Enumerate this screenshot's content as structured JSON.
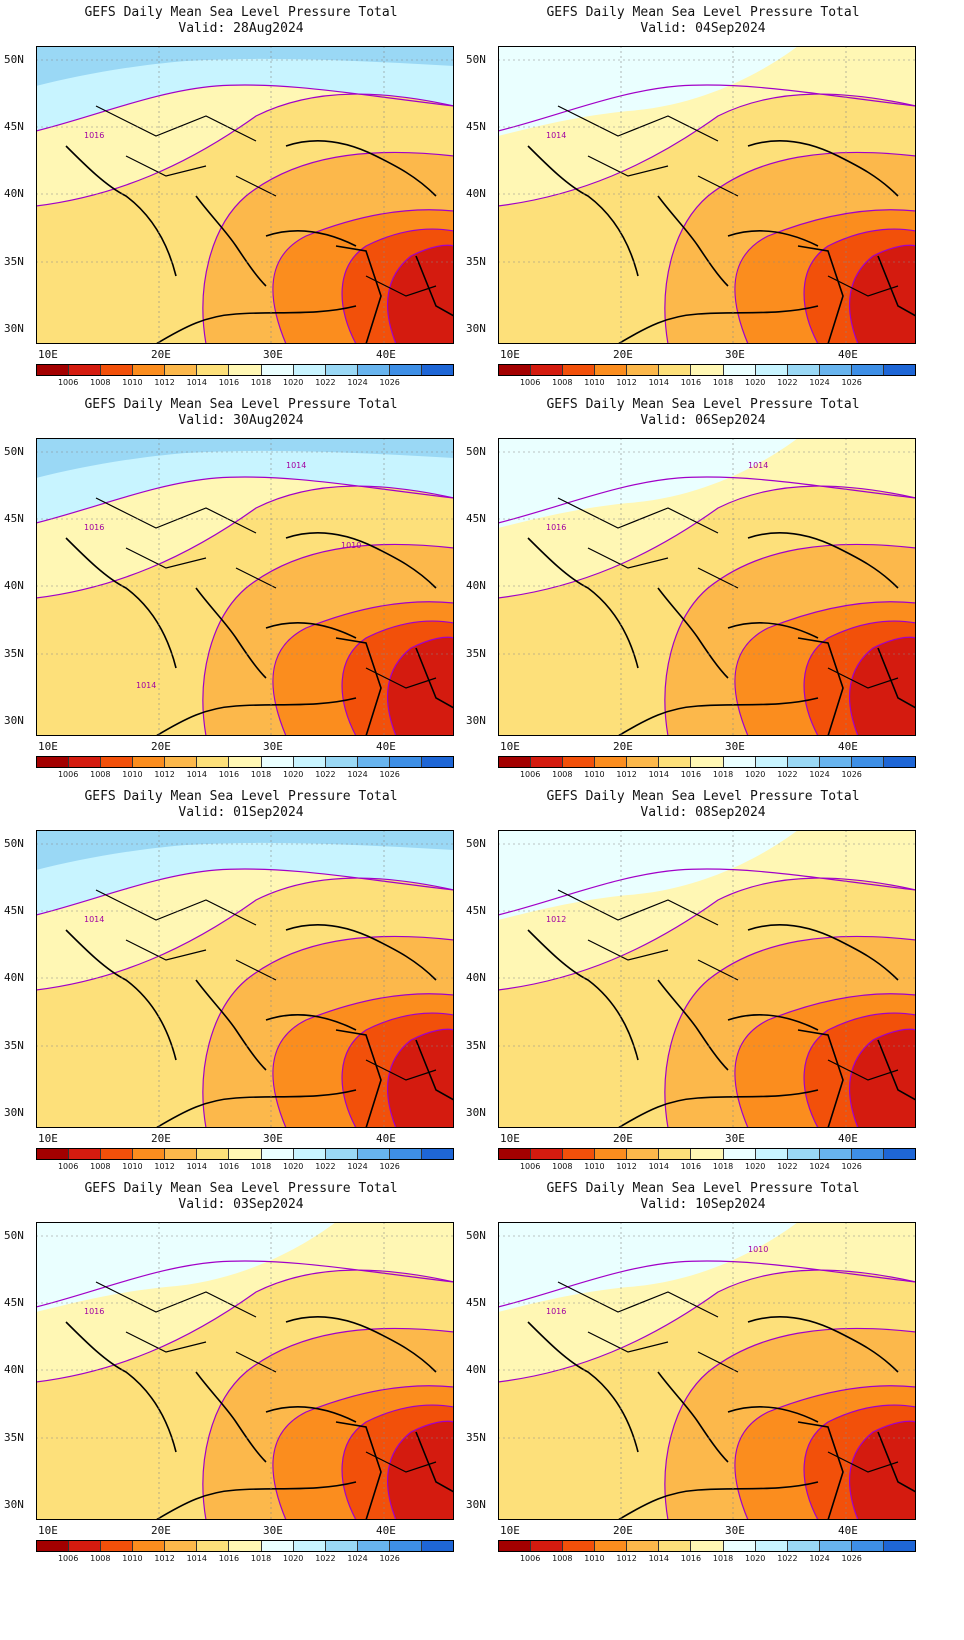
{
  "title_line1": "GEFS Daily Mean Sea Level Pressure Total",
  "lat_labels": [
    "50N",
    "45N",
    "40N",
    "35N",
    "30N"
  ],
  "lon_labels": [
    "10E",
    "20E",
    "30E",
    "40E"
  ],
  "colorbar": {
    "labels": [
      "1006",
      "1008",
      "1010",
      "1012",
      "1014",
      "1016",
      "1018",
      "1020",
      "1022",
      "1024",
      "1026"
    ],
    "colors": [
      "#a30000",
      "#d41b0f",
      "#f2500a",
      "#fb8d1e",
      "#fcb84b",
      "#fde07a",
      "#fff7b4",
      "#eaffff",
      "#c8f4ff",
      "#9ad8f5",
      "#68b4ee",
      "#3e8fe6",
      "#1e66d6"
    ]
  },
  "panels": [
    {
      "valid": "Valid: 28Aug2024",
      "iso_label": "1016"
    },
    {
      "valid": "Valid: 04Sep2024",
      "iso_label": "1014"
    },
    {
      "valid": "Valid: 30Aug2024",
      "iso_label": "1016",
      "iso_label2": "1014",
      "iso_label3": "1010",
      "iso_label4": "1014"
    },
    {
      "valid": "Valid: 06Sep2024",
      "iso_label": "1016",
      "iso_label2": "1014"
    },
    {
      "valid": "Valid: 01Sep2024",
      "iso_label": "1014"
    },
    {
      "valid": "Valid: 08Sep2024",
      "iso_label": "1012"
    },
    {
      "valid": "Valid: 03Sep2024",
      "iso_label": "1016"
    },
    {
      "valid": "Valid: 10Sep2024",
      "iso_label": "1016",
      "iso_label2": "1010"
    }
  ]
}
